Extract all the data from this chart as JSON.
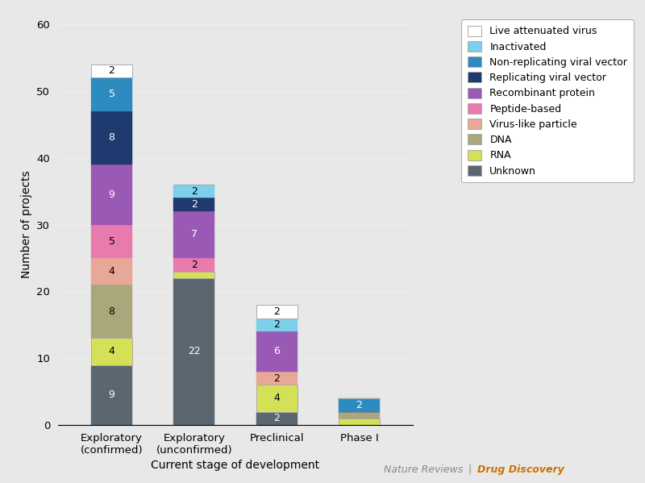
{
  "categories": [
    "Exploratory\n(confirmed)",
    "Exploratory\n(unconfirmed)",
    "Preclinical",
    "Phase I"
  ],
  "series": [
    {
      "label": "Unknown",
      "color": "#5B6770",
      "values": [
        9,
        22,
        2,
        0
      ]
    },
    {
      "label": "RNA",
      "color": "#D4E157",
      "values": [
        4,
        1,
        4,
        1
      ]
    },
    {
      "label": "DNA",
      "color": "#A8A87A",
      "values": [
        8,
        0,
        0,
        1
      ]
    },
    {
      "label": "Virus-like particle",
      "color": "#E8A898",
      "values": [
        4,
        0,
        2,
        0
      ]
    },
    {
      "label": "Peptide-based",
      "color": "#E87AAE",
      "values": [
        5,
        2,
        0,
        0
      ]
    },
    {
      "label": "Recombinant protein",
      "color": "#9B59B6",
      "values": [
        9,
        7,
        6,
        0
      ]
    },
    {
      "label": "Replicating viral vector",
      "color": "#1E3A6E",
      "values": [
        8,
        2,
        0,
        0
      ]
    },
    {
      "label": "Non-replicating viral vector",
      "color": "#2E8BC0",
      "values": [
        5,
        0,
        0,
        2
      ]
    },
    {
      "label": "Inactivated",
      "color": "#7ECFEB",
      "values": [
        0,
        2,
        2,
        0
      ]
    },
    {
      "label": "Live attenuated virus",
      "color": "#FFFFFF",
      "values": [
        2,
        0,
        2,
        0
      ]
    }
  ],
  "legend_order": [
    "Live attenuated virus",
    "Inactivated",
    "Non-replicating viral vector",
    "Replicating viral vector",
    "Recombinant protein",
    "Peptide-based",
    "Virus-like particle",
    "DNA",
    "RNA",
    "Unknown"
  ],
  "ylabel": "Number of projects",
  "xlabel": "Current stage of development",
  "ylim": [
    0,
    60
  ],
  "yticks": [
    0,
    10,
    20,
    30,
    40,
    50,
    60
  ],
  "background_color": "#E8E8E8",
  "plot_background": "#E8E8E8",
  "bar_width": 0.5,
  "title_color_plain": "#888888",
  "title_color_highlight": "#D07000"
}
